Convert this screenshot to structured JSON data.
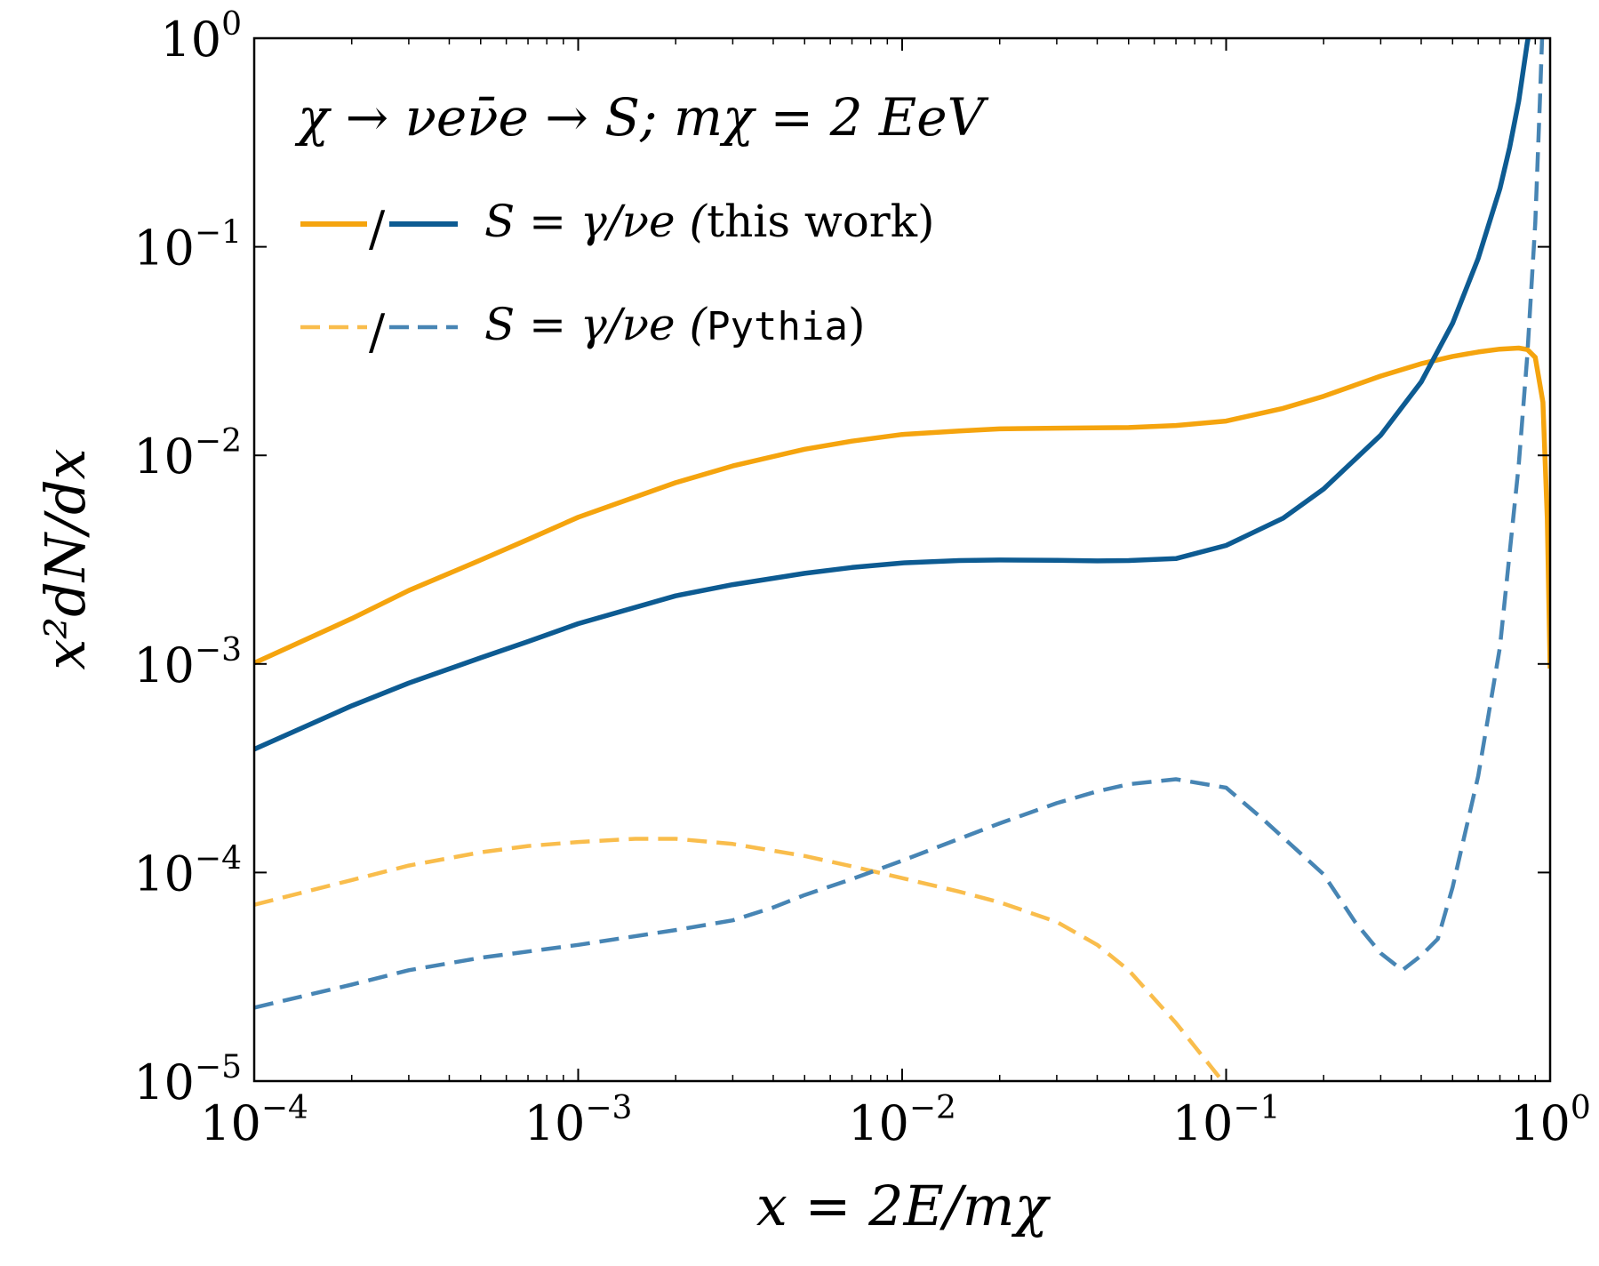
{
  "chart_data": {
    "type": "line",
    "annotation": "χ → νeν̄e → S; mχ = 2 EeV",
    "xlabel": "x = 2E/mχ",
    "ylabel": "x²dN/dx",
    "xscale": "log",
    "yscale": "log",
    "xlim": [
      0.0001,
      1
    ],
    "ylim": [
      1e-05,
      1
    ],
    "x_ticks": [
      {
        "value": 0.0001,
        "base": "10",
        "exp": "−4"
      },
      {
        "value": 0.001,
        "base": "10",
        "exp": "−3"
      },
      {
        "value": 0.01,
        "base": "10",
        "exp": "−2"
      },
      {
        "value": 0.1,
        "base": "10",
        "exp": "−1"
      },
      {
        "value": 1,
        "base": "10",
        "exp": "0"
      }
    ],
    "y_ticks": [
      {
        "value": 1e-05,
        "base": "10",
        "exp": "−5"
      },
      {
        "value": 0.0001,
        "base": "10",
        "exp": "−4"
      },
      {
        "value": 0.001,
        "base": "10",
        "exp": "−3"
      },
      {
        "value": 0.01,
        "base": "10",
        "exp": "−2"
      },
      {
        "value": 0.1,
        "base": "10",
        "exp": "−1"
      },
      {
        "value": 1,
        "base": "10",
        "exp": "0"
      }
    ],
    "legend": {
      "placement": "upper-left",
      "entries": [
        {
          "label_prefix": "S = γ/νe (",
          "label_paren": "this work",
          "label_suffix": ")",
          "style": "solid",
          "colors": [
            "#f5a40e",
            "#0d5b92"
          ]
        },
        {
          "label_prefix": "S = γ/νe (",
          "label_paren": "Pythia",
          "label_suffix": ")",
          "style": "dashed",
          "colors": [
            "#f9bd4c",
            "#4785b4"
          ]
        }
      ]
    },
    "series": [
      {
        "id": "photon-this-work",
        "color": "#f5a40e",
        "style": "solid",
        "points": [
          [
            0.0001,
            0.00101
          ],
          [
            0.0002,
            0.00165
          ],
          [
            0.0003,
            0.00225
          ],
          [
            0.0005,
            0.00315
          ],
          [
            0.0007,
            0.00395
          ],
          [
            0.001,
            0.00505
          ],
          [
            0.002,
            0.0074
          ],
          [
            0.003,
            0.0089
          ],
          [
            0.005,
            0.0107
          ],
          [
            0.007,
            0.0117
          ],
          [
            0.01,
            0.0126
          ],
          [
            0.015,
            0.0131
          ],
          [
            0.02,
            0.0134
          ],
          [
            0.03,
            0.0135
          ],
          [
            0.05,
            0.0136
          ],
          [
            0.07,
            0.0139
          ],
          [
            0.1,
            0.0146
          ],
          [
            0.15,
            0.0168
          ],
          [
            0.2,
            0.0192
          ],
          [
            0.3,
            0.024
          ],
          [
            0.4,
            0.0275
          ],
          [
            0.5,
            0.0298
          ],
          [
            0.6,
            0.0313
          ],
          [
            0.7,
            0.0323
          ],
          [
            0.8,
            0.0327
          ],
          [
            0.85,
            0.0322
          ],
          [
            0.9,
            0.0295
          ],
          [
            0.95,
            0.018
          ],
          [
            0.98,
            0.005
          ],
          [
            1.0,
            0.00095
          ]
        ]
      },
      {
        "id": "nue-this-work",
        "color": "#0d5b92",
        "style": "solid",
        "points": [
          [
            0.0001,
            0.00039
          ],
          [
            0.0002,
            0.00063
          ],
          [
            0.0003,
            0.00081
          ],
          [
            0.0005,
            0.00107
          ],
          [
            0.0007,
            0.00128
          ],
          [
            0.001,
            0.00156
          ],
          [
            0.002,
            0.00212
          ],
          [
            0.003,
            0.0024
          ],
          [
            0.005,
            0.00272
          ],
          [
            0.007,
            0.0029
          ],
          [
            0.01,
            0.00305
          ],
          [
            0.015,
            0.00313
          ],
          [
            0.02,
            0.00315
          ],
          [
            0.03,
            0.00314
          ],
          [
            0.04,
            0.00312
          ],
          [
            0.05,
            0.00313
          ],
          [
            0.07,
            0.0032
          ],
          [
            0.1,
            0.0037
          ],
          [
            0.15,
            0.005
          ],
          [
            0.2,
            0.0069
          ],
          [
            0.3,
            0.0125
          ],
          [
            0.4,
            0.0225
          ],
          [
            0.5,
            0.043
          ],
          [
            0.6,
            0.088
          ],
          [
            0.7,
            0.19
          ],
          [
            0.75,
            0.3
          ],
          [
            0.8,
            0.5
          ],
          [
            0.85,
            0.95
          ],
          [
            0.9,
            1.5
          ]
        ]
      },
      {
        "id": "photon-pythia",
        "color": "#f9bd4c",
        "style": "dashed",
        "points": [
          [
            0.0001,
            7e-05
          ],
          [
            0.0002,
            9.2e-05
          ],
          [
            0.0003,
            0.000108
          ],
          [
            0.0005,
            0.000125
          ],
          [
            0.0007,
            0.000134
          ],
          [
            0.001,
            0.00014
          ],
          [
            0.0015,
            0.000145
          ],
          [
            0.002,
            0.000145
          ],
          [
            0.003,
            0.000137
          ],
          [
            0.005,
            0.00012
          ],
          [
            0.007,
            0.000107
          ],
          [
            0.01,
            9.4e-05
          ],
          [
            0.015,
            8.1e-05
          ],
          [
            0.02,
            7.2e-05
          ],
          [
            0.03,
            5.8e-05
          ],
          [
            0.04,
            4.5e-05
          ],
          [
            0.05,
            3.4e-05
          ],
          [
            0.07,
            1.9e-05
          ],
          [
            0.1,
            9.5e-06
          ]
        ]
      },
      {
        "id": "nue-pythia",
        "color": "#4785b4",
        "style": "dashed",
        "points": [
          [
            0.0001,
            2.25e-05
          ],
          [
            0.0002,
            2.9e-05
          ],
          [
            0.0003,
            3.4e-05
          ],
          [
            0.0005,
            3.9e-05
          ],
          [
            0.001,
            4.5e-05
          ],
          [
            0.002,
            5.3e-05
          ],
          [
            0.003,
            5.9e-05
          ],
          [
            0.004,
            6.8e-05
          ],
          [
            0.005,
            7.8e-05
          ],
          [
            0.007,
            9.3e-05
          ],
          [
            0.01,
            0.000114
          ],
          [
            0.015,
            0.000145
          ],
          [
            0.02,
            0.000172
          ],
          [
            0.03,
            0.000215
          ],
          [
            0.04,
            0.000245
          ],
          [
            0.05,
            0.000265
          ],
          [
            0.07,
            0.00028
          ],
          [
            0.1,
            0.000255
          ],
          [
            0.13,
            0.00018
          ],
          [
            0.2,
            9.8e-05
          ],
          [
            0.25,
            5.8e-05
          ],
          [
            0.3,
            4.1e-05
          ],
          [
            0.35,
            3.4e-05
          ],
          [
            0.4,
            4e-05
          ],
          [
            0.45,
            4.8e-05
          ],
          [
            0.5,
            8.5e-05
          ],
          [
            0.6,
            0.00029
          ],
          [
            0.7,
            0.0012
          ],
          [
            0.8,
            0.009
          ],
          [
            0.85,
            0.03
          ],
          [
            0.9,
            0.13
          ],
          [
            0.93,
            0.5
          ],
          [
            0.95,
            1.3
          ]
        ]
      }
    ]
  }
}
